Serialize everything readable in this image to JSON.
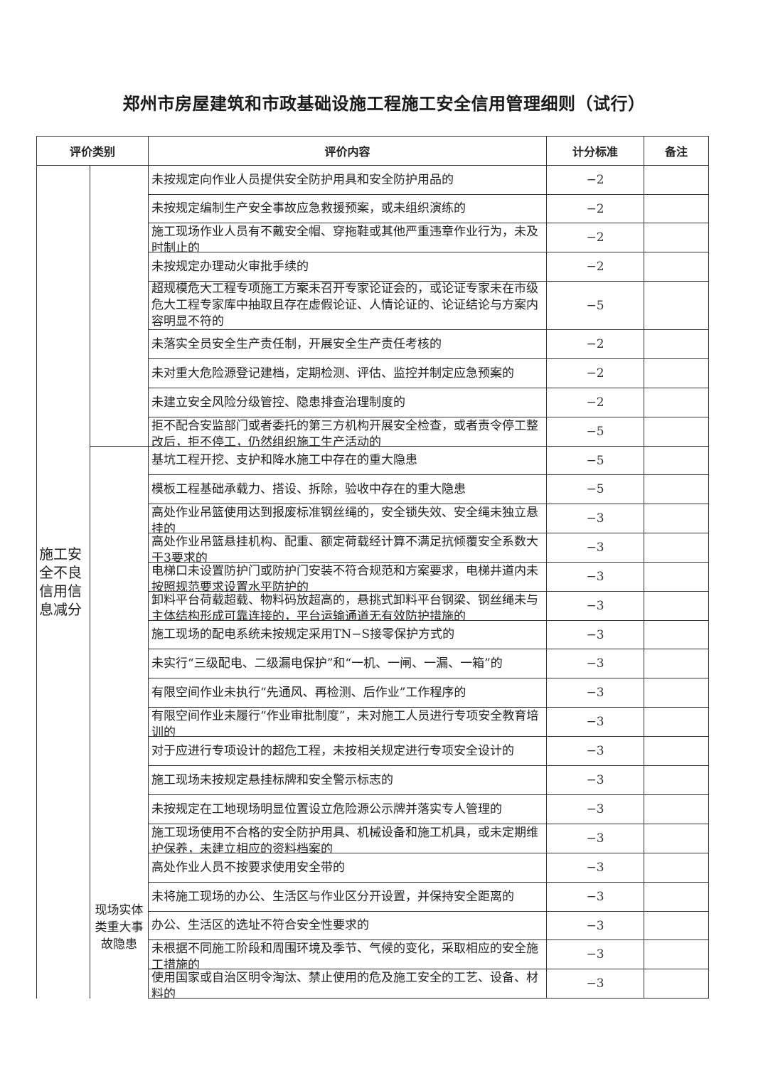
{
  "title": "郑州市房屋建筑和市政基础设施工程施工安全信用管理细则（试行）",
  "headers": {
    "category": "评价类别",
    "content": "评价内容",
    "score": "计分标准",
    "remark": "备注"
  },
  "category_main": "施工安全不良信用信息减分",
  "groups": [
    {
      "label": "",
      "items": [
        {
          "content": "未按规定向作业人员提供安全防护用具和安全防护用品的",
          "score": "−2"
        },
        {
          "content": "未按规定编制生产安全事故应急救援预案，或未组织演练的",
          "score": "−2"
        },
        {
          "content": "施工现场作业人员有不戴安全帽、穿拖鞋或其他严重违章作业行为，未及时制止的",
          "score": "−2"
        },
        {
          "content": "未按规定办理动火审批手续的",
          "score": "−2"
        },
        {
          "content": "超规模危大工程专项施工方案未召开专家论证会的，或论证专家未在市级危大工程专家库中抽取且存在虚假论证、人情论证的、论证结论与方案内容明显不符的",
          "score": "−5"
        },
        {
          "content": "未落实全员安全生产责任制，开展安全生产责任考核的",
          "score": "−2"
        },
        {
          "content": "未对重大危险源登记建档，定期检测、评估、监控并制定应急预案的",
          "score": "−2"
        },
        {
          "content": "未建立安全风险分级管控、隐患排查治理制度的",
          "score": "−2"
        },
        {
          "content": "拒不配合安监部门或者委托的第三方机构开展安全检查，或者责令停工整改后，拒不停工，仍然组织施工生产活动的",
          "score": "−5"
        }
      ]
    },
    {
      "label": "现场实体类重大事故隐患",
      "items": [
        {
          "content": "基坑工程开挖、支护和降水施工中存在的重大隐患",
          "score": "−5"
        },
        {
          "content": "模板工程基础承载力、搭设、拆除，验收中存在的重大隐患",
          "score": "−5"
        },
        {
          "content": "高处作业吊篮使用达到报废标准钢丝绳的，安全锁失效、安全绳未独立悬挂的",
          "score": "−3"
        },
        {
          "content": "高处作业吊篮悬挂机构、配重、额定荷载经计算不满足抗倾覆安全系数大于3要求的",
          "score": "−3"
        },
        {
          "content": "电梯口未设置防护门或防护门安装不符合规范和方案要求，电梯井道内未按照规范要求设置水平防护的",
          "score": "−3"
        },
        {
          "content": "卸料平台荷载超载、物料码放超高的，悬挑式卸料平台钢梁、钢丝绳未与主体结构形成可靠连接的，平台运输通道无有效防护措施的",
          "score": "−3"
        },
        {
          "content": "施工现场的配电系统未按规定采用TN−S接零保护方式的",
          "score": "−3"
        },
        {
          "content": "未实行“三级配电、二级漏电保护”和“一机、一闸、一漏、一箱”的",
          "score": "−3"
        },
        {
          "content": "有限空间作业未执行“先通风、再检测、后作业”工作程序的",
          "score": "−3"
        },
        {
          "content": "有限空间作业未履行“作业审批制度”，未对施工人员进行专项安全教育培训的",
          "score": "−3"
        },
        {
          "content": "对于应进行专项设计的超危工程，未按相关规定进行专项安全设计的",
          "score": "−3"
        },
        {
          "content": "施工现场未按规定悬挂标牌和安全警示标志的",
          "score": "−3"
        },
        {
          "content": "未按规定在工地现场明显位置设立危险源公示牌并落实专人管理的",
          "score": "−3"
        },
        {
          "content": "施工现场使用不合格的安全防护用具、机械设备和施工机具，或未定期维护保养，未建立相应的资料档案的",
          "score": "−3"
        },
        {
          "content": "高处作业人员不按要求使用安全带的",
          "score": "−3"
        },
        {
          "content": "未将施工现场的办公、生活区与作业区分开设置，并保持安全距离的",
          "score": "−3"
        },
        {
          "content": "办公、生活区的选址不符合安全性要求的",
          "score": "−3"
        },
        {
          "content": "未根据不同施工阶段和周围环境及季节、气候的变化，采取相应的安全施工措施的",
          "score": "−3"
        },
        {
          "content": "使用国家或自治区明令淘汰、禁止使用的危及施工安全的工艺、设备、材料的",
          "score": "−3"
        }
      ]
    }
  ]
}
